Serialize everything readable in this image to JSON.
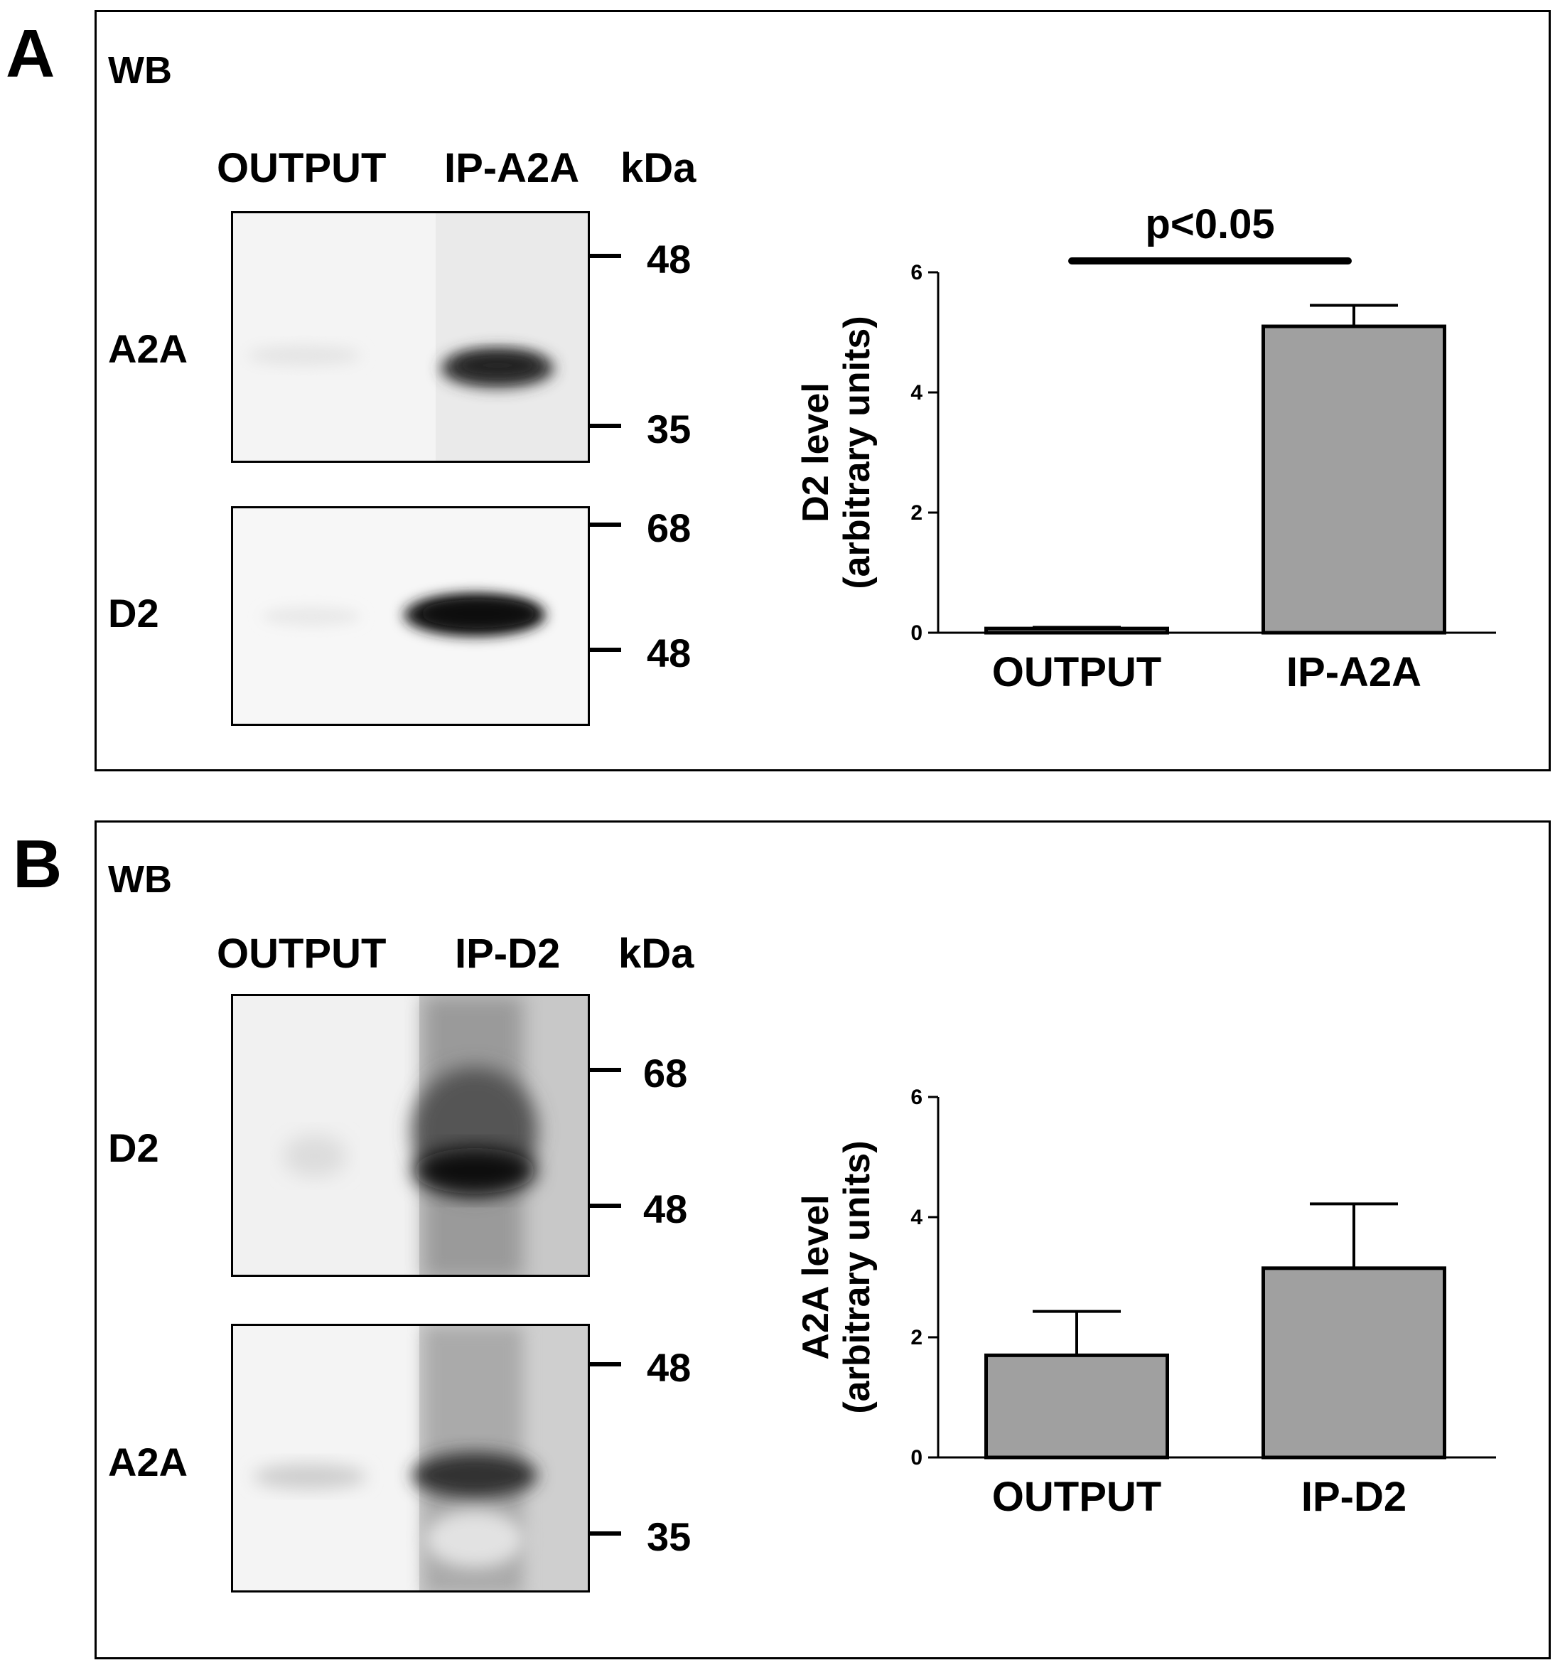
{
  "panelA": {
    "letter": "A",
    "wb": "WB",
    "lanes": [
      "OUTPUT",
      "IP-A2A"
    ],
    "kda": "kDa",
    "blot1": {
      "protein": "A2A",
      "markers": [
        "48",
        "35"
      ]
    },
    "blot2": {
      "protein": "D2",
      "markers": [
        "68",
        "48"
      ]
    }
  },
  "panelB": {
    "letter": "B",
    "wb": "WB",
    "lanes": [
      "OUTPUT",
      "IP-D2"
    ],
    "kda": "kDa",
    "blot1": {
      "protein": "D2",
      "markers": [
        "68",
        "48"
      ]
    },
    "blot2": {
      "protein": "A2A",
      "markers": [
        "48",
        "35"
      ]
    }
  },
  "chart_data": [
    {
      "type": "bar",
      "categories": [
        "OUTPUT",
        "IP-A2A"
      ],
      "values": [
        0.07,
        5.1
      ],
      "errors": [
        0.02,
        0.35
      ],
      "ylabel_line1": "D2 level",
      "ylabel_line2": "(arbitrary units)",
      "ylim": [
        0,
        6
      ],
      "yticks": [
        "0",
        "2",
        "4",
        "6"
      ],
      "annotation": "p<0.05",
      "bar_color": "#a0a0a0"
    },
    {
      "type": "bar",
      "categories": [
        "OUTPUT",
        "IP-D2"
      ],
      "values": [
        1.7,
        3.15
      ],
      "errors": [
        0.73,
        1.07
      ],
      "ylabel_line1": "A2A level",
      "ylabel_line2": "(arbitrary units)",
      "ylim": [
        0,
        6
      ],
      "yticks": [
        "0",
        "2",
        "4",
        "6"
      ],
      "bar_color": "#a0a0a0"
    }
  ]
}
